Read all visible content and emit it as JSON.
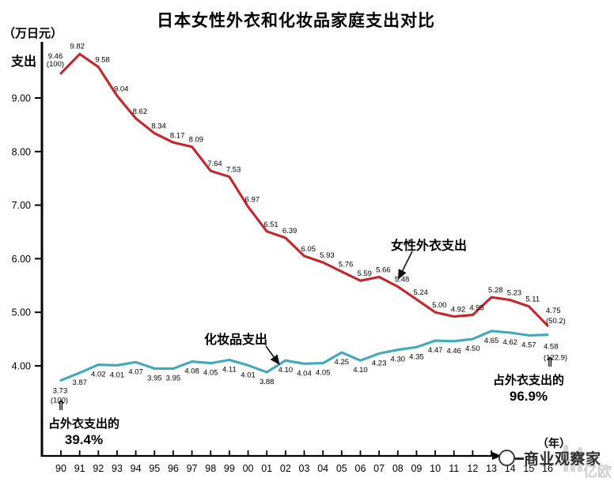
{
  "title": "日本女性外衣和化妆品家庭支出对比",
  "y_axis": {
    "unit": "（万日元）",
    "label": "支出",
    "ticks": [
      {
        "label": "9.00",
        "value": 9
      },
      {
        "label": "8.00",
        "value": 8
      },
      {
        "label": "7.00",
        "value": 7
      },
      {
        "label": "6.00",
        "value": 6
      },
      {
        "label": "5.00",
        "value": 5
      },
      {
        "label": "4.00",
        "value": 4
      }
    ]
  },
  "x_axis": {
    "unit": "（年）",
    "labels": [
      "90",
      "91",
      "92",
      "93",
      "94",
      "95",
      "96",
      "97",
      "98",
      "99",
      "00",
      "01",
      "02",
      "03",
      "04",
      "05",
      "06",
      "07",
      "08",
      "09",
      "10",
      "11",
      "12",
      "13",
      "14",
      "15",
      "16"
    ]
  },
  "chart_data": {
    "type": "line",
    "x": [
      "90",
      "91",
      "92",
      "93",
      "94",
      "95",
      "96",
      "97",
      "98",
      "99",
      "00",
      "01",
      "02",
      "03",
      "04",
      "05",
      "06",
      "07",
      "08",
      "09",
      "10",
      "11",
      "12",
      "13",
      "14",
      "15",
      "16"
    ],
    "xlabel": "年",
    "ylabel": "支出（万日元）",
    "ylim": [
      3.6,
      10.0
    ],
    "grid": false,
    "series": [
      {
        "name": "女性外衣支出",
        "color": "#c4262c",
        "values": [
          9.46,
          9.82,
          9.58,
          9.04,
          8.62,
          8.34,
          8.17,
          8.09,
          7.64,
          7.53,
          6.97,
          6.51,
          6.39,
          6.05,
          5.93,
          5.76,
          5.59,
          5.66,
          5.48,
          5.24,
          5.0,
          4.92,
          4.95,
          5.28,
          5.23,
          5.11,
          4.75
        ],
        "first_note": "(100)",
        "last_note": "(50.2)"
      },
      {
        "name": "化妆品支出",
        "color": "#41a9bd",
        "values": [
          3.73,
          3.87,
          4.02,
          4.01,
          4.07,
          3.95,
          3.95,
          4.08,
          4.05,
          4.11,
          4.01,
          3.88,
          4.1,
          4.04,
          4.05,
          4.25,
          4.1,
          4.23,
          4.3,
          4.35,
          4.47,
          4.46,
          4.5,
          4.65,
          4.62,
          4.57,
          4.58
        ],
        "first_note": "(100)",
        "last_note": "(122.9)"
      }
    ],
    "annotations": {
      "left_pct": {
        "arrow": "⇑",
        "text": "占外衣支出的",
        "pct": "39.4%"
      },
      "right_pct": {
        "arrow": "⇑",
        "text": "占外衣支出的",
        "pct": "96.9%"
      }
    }
  },
  "watermark": {
    "brand": "商业观察家",
    "faint": "亿欧"
  }
}
